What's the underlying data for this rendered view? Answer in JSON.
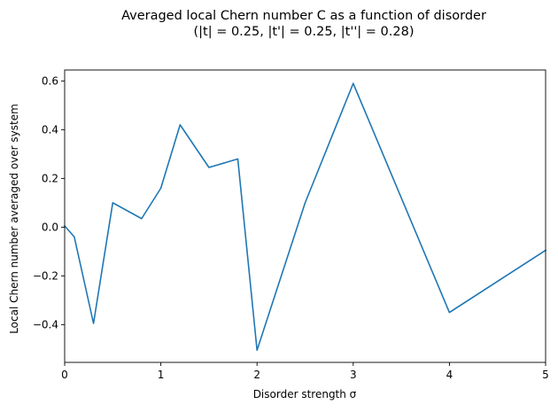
{
  "chart_data": {
    "type": "line",
    "title_line1": "Averaged local Chern number C as a function of disorder",
    "title_line2": "(|t| = 0.25, |t'| = 0.25, |t''| = 0.28)",
    "xlabel": "Disorder strength σ",
    "ylabel": "Local Chern number averaged over system",
    "xlim": [
      0,
      5
    ],
    "ylim": [
      -0.555,
      0.645
    ],
    "xticks": [
      0,
      1,
      2,
      3,
      4,
      5
    ],
    "xtick_labels": [
      "0",
      "1",
      "2",
      "3",
      "4",
      "5"
    ],
    "yticks": [
      -0.4,
      -0.2,
      0.0,
      0.2,
      0.4,
      0.6
    ],
    "ytick_labels": [
      "−0.4",
      "−0.2",
      "0.0",
      "0.2",
      "0.4",
      "0.6"
    ],
    "grid": false,
    "series": [
      {
        "color": "#1f77b4",
        "x": [
          0.0,
          0.1,
          0.3,
          0.5,
          0.8,
          1.0,
          1.2,
          1.5,
          1.8,
          2.0,
          2.5,
          3.0,
          4.0,
          5.0
        ],
        "y": [
          0.005,
          -0.04,
          -0.395,
          0.1,
          0.035,
          0.16,
          0.42,
          0.245,
          0.28,
          -0.505,
          0.1,
          0.59,
          -0.35,
          -0.095
        ]
      }
    ]
  }
}
